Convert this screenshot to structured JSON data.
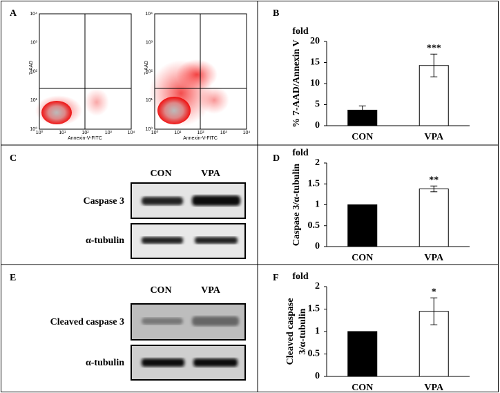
{
  "panel_labels": [
    "A",
    "B",
    "C",
    "D",
    "E",
    "F"
  ],
  "flow": {
    "x_label": "Annexin-V-FITC",
    "y_label": "7-AAD",
    "ticks": [
      "10⁰",
      "10¹",
      "10²",
      "10³",
      "10⁴"
    ]
  },
  "blots": [
    {
      "lanes": [
        "CON",
        "VPA"
      ],
      "rows": [
        "Caspase 3",
        "α-tubulin"
      ]
    },
    {
      "lanes": [
        "CON",
        "VPA"
      ],
      "rows": [
        "Cleaved caspase 3",
        "α-tubulin"
      ]
    }
  ],
  "chart_data": [
    {
      "type": "bar",
      "unit_label": "fold",
      "ylabel": [
        "% 7-AAD/Annexin V"
      ],
      "categories": [
        "CON",
        "VPA"
      ],
      "values": [
        3.7,
        14.3
      ],
      "errors": [
        1.0,
        2.7
      ],
      "colors": [
        "#000000",
        "#ffffff"
      ],
      "ylim": [
        0,
        20
      ],
      "yticks": [
        0,
        5,
        10,
        15,
        20
      ],
      "annotations": [
        {
          "category": "VPA",
          "text": "***"
        }
      ]
    },
    {
      "type": "bar",
      "unit_label": "fold",
      "ylabel": [
        "Caspase 3/α-tubulin"
      ],
      "categories": [
        "CON",
        "VPA"
      ],
      "values": [
        1,
        1.38
      ],
      "errors": [
        0,
        0.07
      ],
      "colors": [
        "#000000",
        "#ffffff"
      ],
      "ylim": [
        0,
        2
      ],
      "yticks": [
        0,
        0.5,
        1,
        1.5,
        2
      ],
      "annotations": [
        {
          "category": "VPA",
          "text": "**"
        }
      ]
    },
    {
      "type": "bar",
      "unit_label": "fold",
      "ylabel": [
        "Cleaved caspase",
        "3/α-tubulin"
      ],
      "categories": [
        "CON",
        "VPA"
      ],
      "values": [
        1,
        1.45
      ],
      "errors": [
        0,
        0.3
      ],
      "colors": [
        "#000000",
        "#ffffff"
      ],
      "ylim": [
        0,
        2
      ],
      "yticks": [
        0,
        0.5,
        1,
        1.5,
        2
      ],
      "annotations": [
        {
          "category": "VPA",
          "text": "*"
        }
      ]
    }
  ]
}
